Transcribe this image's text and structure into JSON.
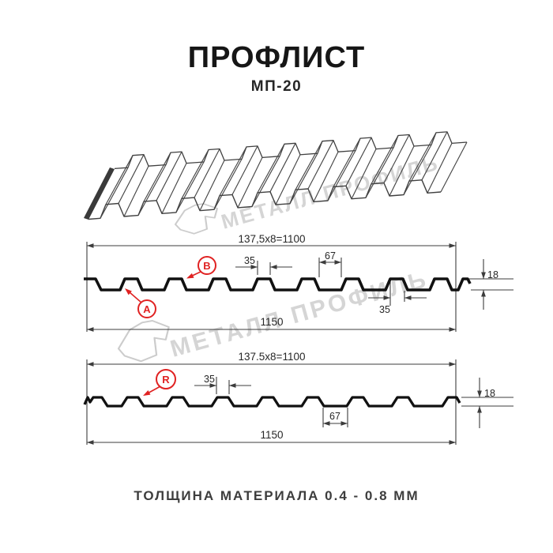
{
  "header": {
    "title": "ПРОФЛИСТ",
    "subtitle": "МП-20"
  },
  "watermark": {
    "text": "МЕТАЛЛ ПРОФИЛЬ",
    "logo": "metall-profil-logo",
    "color": "#d5d5d5"
  },
  "colors": {
    "accent_red": "#e02222",
    "drawing_line": "#1a1a1a",
    "dim_line": "#3c3c3c",
    "watermark_gray": "#cccccc"
  },
  "sections": {
    "front": {
      "dims": {
        "module": "137,5x8=1100",
        "rib_top": "35",
        "groove": "67",
        "height": "18",
        "rib_top_reverse": "35",
        "total": "1150"
      },
      "markers": {
        "a": "A",
        "b": "B"
      }
    },
    "reverse": {
      "dims": {
        "module": "137.5x8=1100",
        "rib_top": "35",
        "groove": "67",
        "height": "18",
        "total": "1150"
      },
      "markers": {
        "r": "R"
      }
    }
  },
  "footer": {
    "note": "ТОЛЩИНА МАТЕРИАЛА 0.4 - 0.8 ММ"
  }
}
